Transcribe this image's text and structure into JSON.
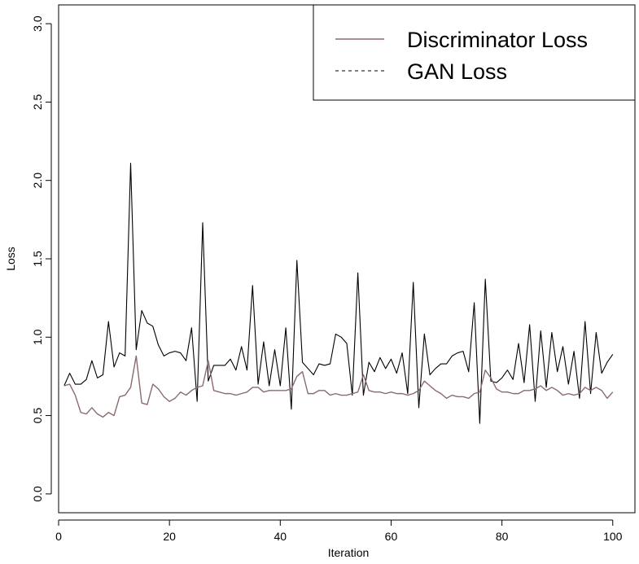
{
  "chart_data": {
    "type": "line",
    "title": "",
    "xlabel": "Iteration",
    "ylabel": "Loss",
    "xlim": [
      0,
      104
    ],
    "ylim": [
      -0.12,
      3.12
    ],
    "xticks": [
      0,
      20,
      40,
      60,
      80,
      100
    ],
    "yticks": [
      0.0,
      0.5,
      1.0,
      1.5,
      2.0,
      2.5,
      3.0
    ],
    "xtick_labels": [
      "0",
      "20",
      "40",
      "60",
      "80",
      "100"
    ],
    "ytick_labels": [
      "0.0",
      "0.5",
      "1.0",
      "1.5",
      "2.0",
      "2.5",
      "3.0"
    ],
    "grid": false,
    "legend": "top-right",
    "x": [
      1,
      2,
      3,
      4,
      5,
      6,
      7,
      8,
      9,
      10,
      11,
      12,
      13,
      14,
      15,
      16,
      17,
      18,
      19,
      20,
      21,
      22,
      23,
      24,
      25,
      26,
      27,
      28,
      29,
      30,
      31,
      32,
      33,
      34,
      35,
      36,
      37,
      38,
      39,
      40,
      41,
      42,
      43,
      44,
      45,
      46,
      47,
      48,
      49,
      50,
      51,
      52,
      53,
      54,
      55,
      56,
      57,
      58,
      59,
      60,
      61,
      62,
      63,
      64,
      65,
      66,
      67,
      68,
      69,
      70,
      71,
      72,
      73,
      74,
      75,
      76,
      77,
      78,
      79,
      80,
      81,
      82,
      83,
      84,
      85,
      86,
      87,
      88,
      89,
      90,
      91,
      92,
      93,
      94,
      95,
      96,
      97,
      98,
      99,
      100
    ],
    "series": [
      {
        "name": "Discriminator Loss",
        "color": "#8b6b6e",
        "dash": "solid",
        "values": [
          0.69,
          0.7,
          0.63,
          0.52,
          0.51,
          0.55,
          0.51,
          0.49,
          0.52,
          0.5,
          0.62,
          0.63,
          0.68,
          0.88,
          0.58,
          0.57,
          0.7,
          0.67,
          0.62,
          0.59,
          0.61,
          0.65,
          0.63,
          0.66,
          0.68,
          0.69,
          0.85,
          0.66,
          0.65,
          0.64,
          0.64,
          0.63,
          0.64,
          0.65,
          0.68,
          0.68,
          0.65,
          0.66,
          0.66,
          0.66,
          0.66,
          0.67,
          0.75,
          0.78,
          0.64,
          0.64,
          0.66,
          0.66,
          0.63,
          0.64,
          0.63,
          0.63,
          0.64,
          0.65,
          0.76,
          0.66,
          0.65,
          0.65,
          0.64,
          0.65,
          0.64,
          0.64,
          0.63,
          0.64,
          0.66,
          0.72,
          0.69,
          0.66,
          0.64,
          0.61,
          0.63,
          0.62,
          0.62,
          0.61,
          0.64,
          0.65,
          0.79,
          0.74,
          0.67,
          0.65,
          0.65,
          0.64,
          0.64,
          0.66,
          0.66,
          0.67,
          0.69,
          0.66,
          0.68,
          0.66,
          0.63,
          0.64,
          0.63,
          0.64,
          0.68,
          0.66,
          0.68,
          0.66,
          0.61,
          0.65
        ]
      },
      {
        "name": "GAN Loss",
        "color": "#000000",
        "dash": "dashed",
        "values": [
          0.69,
          0.77,
          0.7,
          0.7,
          0.73,
          0.85,
          0.74,
          0.76,
          1.1,
          0.81,
          0.9,
          0.88,
          2.11,
          0.92,
          1.17,
          1.09,
          1.07,
          0.95,
          0.88,
          0.9,
          0.91,
          0.9,
          0.85,
          1.06,
          0.59,
          1.73,
          0.72,
          0.82,
          0.82,
          0.82,
          0.86,
          0.79,
          0.94,
          0.79,
          1.33,
          0.7,
          0.97,
          0.69,
          0.92,
          0.69,
          1.06,
          0.54,
          1.49,
          0.84,
          0.8,
          0.76,
          0.83,
          0.82,
          0.83,
          1.02,
          1.0,
          0.96,
          0.63,
          1.41,
          0.63,
          0.84,
          0.78,
          0.87,
          0.8,
          0.86,
          0.77,
          0.9,
          0.64,
          1.35,
          0.55,
          1.02,
          0.76,
          0.8,
          0.83,
          0.83,
          0.88,
          0.9,
          0.91,
          0.78,
          1.22,
          0.45,
          1.37,
          0.72,
          0.71,
          0.74,
          0.79,
          0.73,
          0.96,
          0.71,
          1.08,
          0.59,
          1.04,
          0.68,
          1.03,
          0.78,
          0.94,
          0.7,
          0.91,
          0.61,
          1.1,
          0.64,
          1.03,
          0.77,
          0.84,
          0.89
        ]
      }
    ]
  }
}
